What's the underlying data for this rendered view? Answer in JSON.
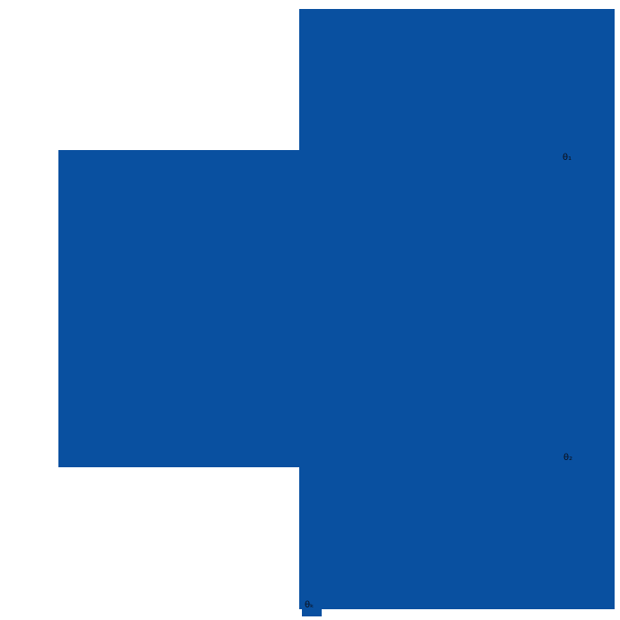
{
  "canvas": {
    "background_color": "#ffffff",
    "shape_color": "#0950a0",
    "label_color": "#0b0f1a"
  },
  "labels": {
    "theta_1": "θ₁",
    "theta_2": "θ₂",
    "theta_k": "θₖ"
  }
}
